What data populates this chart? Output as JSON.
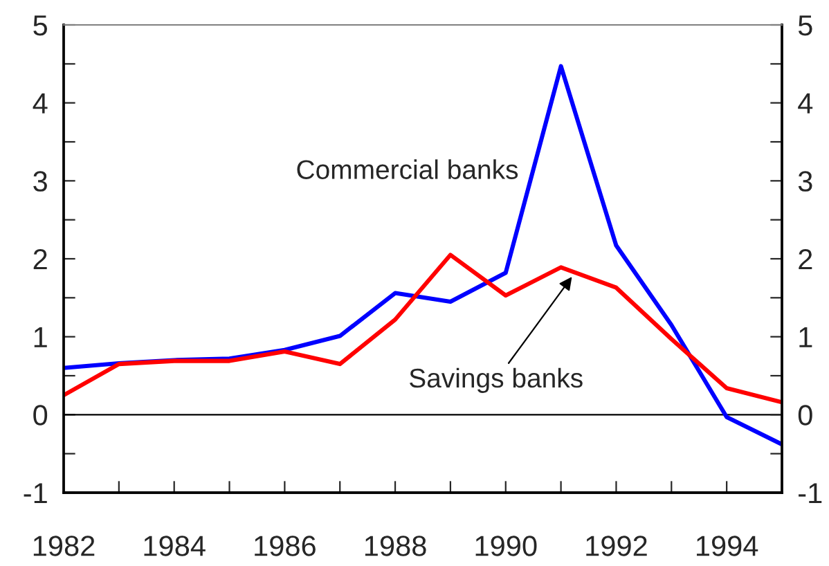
{
  "chart_data": {
    "type": "line",
    "x": [
      1982,
      1983,
      1984,
      1985,
      1986,
      1987,
      1988,
      1989,
      1990,
      1991,
      1992,
      1993,
      1994,
      1995
    ],
    "series": [
      {
        "name": "Commercial banks",
        "color": "#0000ff",
        "values": [
          0.6,
          0.66,
          0.7,
          0.72,
          0.83,
          1.01,
          1.56,
          1.45,
          1.82,
          4.47,
          2.17,
          1.15,
          -0.03,
          -0.38
        ]
      },
      {
        "name": "Savings banks",
        "color": "#ff0000",
        "values": [
          0.25,
          0.65,
          0.69,
          0.69,
          0.81,
          0.65,
          1.22,
          2.05,
          1.53,
          1.89,
          1.63,
          0.97,
          0.34,
          0.16
        ]
      }
    ],
    "xlim": [
      1982,
      1995
    ],
    "xticks": [
      1982,
      {
        "value": 1983,
        "label": null
      },
      1984,
      {
        "value": 1985,
        "label": null
      },
      1986,
      {
        "value": 1987,
        "label": null
      },
      1988,
      {
        "value": 1989,
        "label": null
      },
      1990,
      {
        "value": 1991,
        "label": null
      },
      1992,
      {
        "value": 1993,
        "label": null
      },
      1994,
      {
        "value": 1995,
        "label": null
      }
    ],
    "ylim": [
      -1,
      5
    ],
    "yticks": [
      -1,
      {
        "value": -0.5,
        "label": null
      },
      0,
      {
        "value": 0.5,
        "label": null
      },
      1,
      {
        "value": 1.5,
        "label": null
      },
      2,
      {
        "value": 2.5,
        "label": null
      },
      3,
      {
        "value": 3.5,
        "label": null
      },
      4,
      {
        "value": 4.5,
        "label": null
      },
      5
    ],
    "y2lim": [
      -1,
      5
    ],
    "y2ticks": [
      -1,
      {
        "value": -0.5,
        "label": null
      },
      0,
      {
        "value": 0.5,
        "label": null
      },
      1,
      {
        "value": 1.5,
        "label": null
      },
      2,
      {
        "value": 2.5,
        "label": null
      },
      3,
      {
        "value": 3.5,
        "label": null
      },
      4,
      {
        "value": 4.5,
        "label": null
      },
      5
    ],
    "ref_lines": [
      {
        "axis": "y",
        "value": 0,
        "color": "#000000"
      }
    ],
    "grid": false,
    "legend": false,
    "marker": "none",
    "line_style": "solid"
  }
}
